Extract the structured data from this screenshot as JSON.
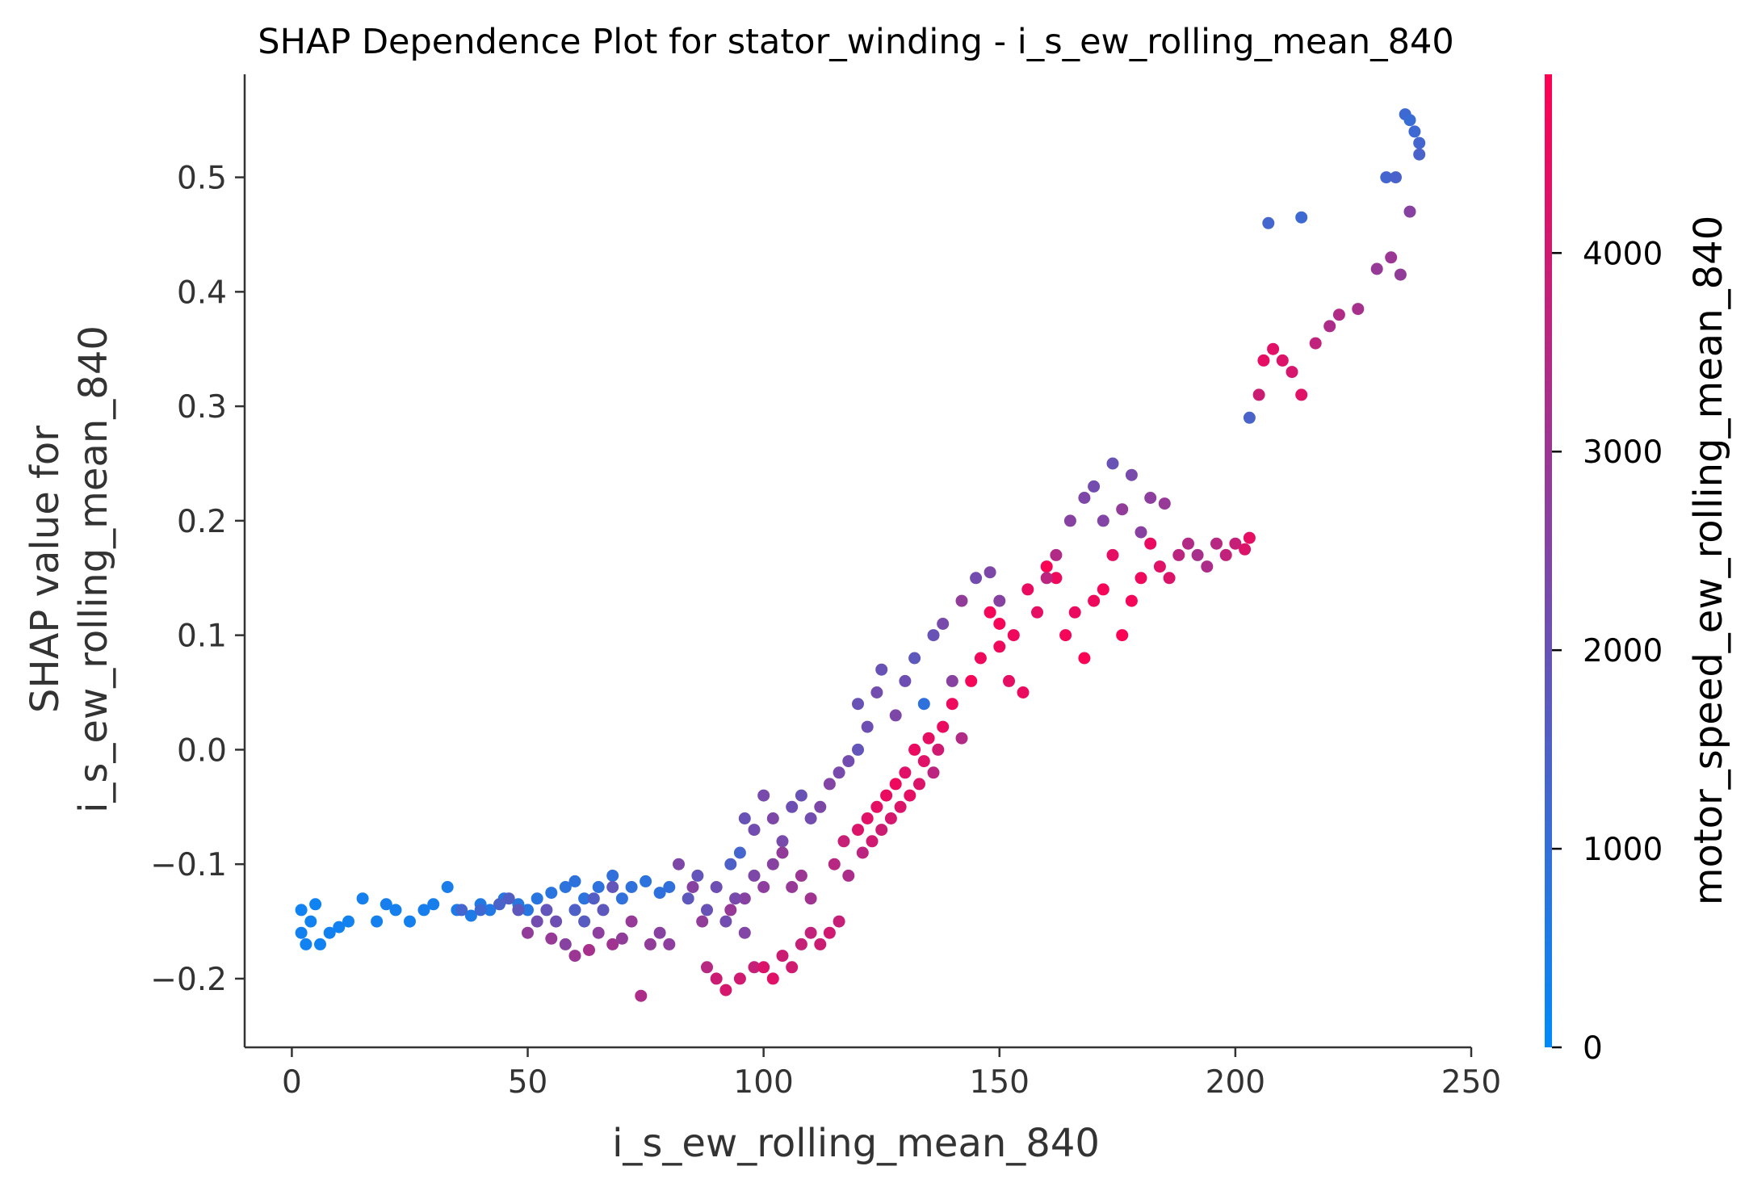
{
  "chart_data": {
    "type": "scatter",
    "title": "SHAP Dependence Plot for stator_winding - i_s_ew_rolling_mean_840",
    "xlabel": "i_s_ew_rolling_mean_840",
    "ylabel": [
      "SHAP value for",
      "i_s_ew_rolling_mean_840"
    ],
    "xlim": [
      -10,
      250
    ],
    "ylim": [
      -0.26,
      0.59
    ],
    "xticks": [
      0,
      50,
      100,
      150,
      200,
      250
    ],
    "yticks": [
      -0.2,
      -0.1,
      0.0,
      0.1,
      0.2,
      0.3,
      0.4,
      0.5
    ],
    "xtick_labels": [
      "0",
      "50",
      "100",
      "150",
      "200",
      "250"
    ],
    "ytick_labels": [
      "−0.2",
      "−0.1",
      "0.0",
      "0.1",
      "0.2",
      "0.3",
      "0.4",
      "0.5"
    ],
    "colorbar": {
      "label": "motor_speed_ew_rolling_mean_840",
      "range": [
        0,
        4900
      ],
      "ticks": [
        0,
        1000,
        2000,
        3000,
        4000
      ],
      "tick_labels": [
        "0",
        "1000",
        "2000",
        "3000",
        "4000"
      ],
      "colors": [
        "#008bfb",
        "#ff0052"
      ]
    },
    "points": [
      [
        2,
        -0.14,
        300
      ],
      [
        2,
        -0.16,
        350
      ],
      [
        3,
        -0.17,
        300
      ],
      [
        4,
        -0.15,
        320
      ],
      [
        5,
        -0.135,
        280
      ],
      [
        6,
        -0.17,
        300
      ],
      [
        8,
        -0.16,
        350
      ],
      [
        10,
        -0.155,
        320
      ],
      [
        12,
        -0.15,
        330
      ],
      [
        15,
        -0.13,
        400
      ],
      [
        18,
        -0.15,
        380
      ],
      [
        20,
        -0.135,
        420
      ],
      [
        22,
        -0.14,
        400
      ],
      [
        25,
        -0.15,
        380
      ],
      [
        28,
        -0.14,
        420
      ],
      [
        30,
        -0.135,
        450
      ],
      [
        33,
        -0.12,
        500
      ],
      [
        35,
        -0.14,
        520
      ],
      [
        38,
        -0.145,
        550
      ],
      [
        40,
        -0.135,
        600
      ],
      [
        42,
        -0.14,
        650
      ],
      [
        45,
        -0.13,
        700
      ],
      [
        48,
        -0.135,
        720
      ],
      [
        50,
        -0.14,
        750
      ],
      [
        52,
        -0.13,
        780
      ],
      [
        55,
        -0.125,
        800
      ],
      [
        58,
        -0.12,
        850
      ],
      [
        60,
        -0.115,
        900
      ],
      [
        62,
        -0.13,
        850
      ],
      [
        65,
        -0.12,
        880
      ],
      [
        68,
        -0.11,
        950
      ],
      [
        70,
        -0.13,
        920
      ],
      [
        72,
        -0.12,
        900
      ],
      [
        75,
        -0.115,
        850
      ],
      [
        78,
        -0.125,
        900
      ],
      [
        80,
        -0.12,
        950
      ],
      [
        50,
        -0.16,
        2800
      ],
      [
        55,
        -0.165,
        2900
      ],
      [
        58,
        -0.17,
        2600
      ],
      [
        60,
        -0.18,
        3000
      ],
      [
        63,
        -0.175,
        3200
      ],
      [
        65,
        -0.16,
        2700
      ],
      [
        68,
        -0.17,
        3100
      ],
      [
        70,
        -0.165,
        2800
      ],
      [
        72,
        -0.15,
        2900
      ],
      [
        74,
        -0.215,
        3300
      ],
      [
        76,
        -0.17,
        2800
      ],
      [
        78,
        -0.16,
        2600
      ],
      [
        80,
        -0.17,
        2700
      ],
      [
        82,
        -0.1,
        2400
      ],
      [
        85,
        -0.12,
        2600
      ],
      [
        87,
        -0.15,
        2800
      ],
      [
        88,
        -0.19,
        3500
      ],
      [
        90,
        -0.2,
        3900
      ],
      [
        92,
        -0.21,
        4100
      ],
      [
        93,
        -0.14,
        2900
      ],
      [
        95,
        -0.2,
        4000
      ],
      [
        96,
        -0.13,
        2600
      ],
      [
        98,
        -0.19,
        3800
      ],
      [
        100,
        -0.19,
        4200
      ],
      [
        102,
        -0.2,
        4300
      ],
      [
        104,
        -0.18,
        3900
      ],
      [
        106,
        -0.19,
        4000
      ],
      [
        108,
        -0.17,
        3800
      ],
      [
        110,
        -0.16,
        3700
      ],
      [
        112,
        -0.17,
        3900
      ],
      [
        114,
        -0.16,
        4000
      ],
      [
        116,
        -0.15,
        3800
      ],
      [
        93,
        -0.1,
        1500
      ],
      [
        95,
        -0.09,
        1300
      ],
      [
        96,
        -0.06,
        2000
      ],
      [
        98,
        -0.07,
        2200
      ],
      [
        100,
        -0.04,
        2300
      ],
      [
        102,
        -0.06,
        2400
      ],
      [
        104,
        -0.08,
        2300
      ],
      [
        106,
        -0.05,
        2100
      ],
      [
        108,
        -0.04,
        2000
      ],
      [
        110,
        -0.06,
        2200
      ],
      [
        112,
        -0.05,
        2400
      ],
      [
        114,
        -0.03,
        2500
      ],
      [
        116,
        -0.02,
        2300
      ],
      [
        118,
        -0.01,
        2200
      ],
      [
        120,
        0.0,
        1900
      ],
      [
        120,
        0.04,
        2000
      ],
      [
        122,
        0.02,
        2100
      ],
      [
        124,
        0.05,
        2200
      ],
      [
        125,
        0.07,
        2000
      ],
      [
        128,
        0.03,
        2400
      ],
      [
        130,
        0.06,
        2100
      ],
      [
        132,
        0.08,
        1800
      ],
      [
        134,
        0.04,
        900
      ],
      [
        136,
        0.1,
        2000
      ],
      [
        138,
        0.11,
        2300
      ],
      [
        140,
        0.06,
        2600
      ],
      [
        142,
        0.13,
        2800
      ],
      [
        145,
        0.15,
        2200
      ],
      [
        148,
        0.155,
        2400
      ],
      [
        150,
        0.13,
        2600
      ],
      [
        115,
        -0.1,
        3500
      ],
      [
        117,
        -0.08,
        3800
      ],
      [
        118,
        -0.11,
        3300
      ],
      [
        120,
        -0.07,
        4200
      ],
      [
        121,
        -0.09,
        3600
      ],
      [
        122,
        -0.06,
        4300
      ],
      [
        123,
        -0.08,
        4000
      ],
      [
        124,
        -0.05,
        4400
      ],
      [
        125,
        -0.07,
        3900
      ],
      [
        126,
        -0.04,
        4500
      ],
      [
        127,
        -0.06,
        4100
      ],
      [
        128,
        -0.03,
        4600
      ],
      [
        129,
        -0.05,
        4200
      ],
      [
        130,
        -0.02,
        4300
      ],
      [
        131,
        -0.04,
        4400
      ],
      [
        132,
        0.0,
        4500
      ],
      [
        133,
        -0.03,
        4200
      ],
      [
        134,
        -0.01,
        4300
      ],
      [
        135,
        0.01,
        4400
      ],
      [
        136,
        -0.02,
        3600
      ],
      [
        137,
        0.0,
        4000
      ],
      [
        138,
        0.02,
        4500
      ],
      [
        140,
        0.04,
        4600
      ],
      [
        142,
        0.01,
        3400
      ],
      [
        144,
        0.06,
        4700
      ],
      [
        146,
        0.08,
        4600
      ],
      [
        148,
        0.12,
        4700
      ],
      [
        150,
        0.09,
        4600
      ],
      [
        152,
        0.06,
        4400
      ],
      [
        155,
        0.05,
        4500
      ],
      [
        150,
        0.11,
        4700
      ],
      [
        153,
        0.1,
        4600
      ],
      [
        156,
        0.14,
        4500
      ],
      [
        158,
        0.12,
        4400
      ],
      [
        160,
        0.16,
        4800
      ],
      [
        162,
        0.15,
        4600
      ],
      [
        164,
        0.1,
        4700
      ],
      [
        166,
        0.12,
        4500
      ],
      [
        168,
        0.08,
        4800
      ],
      [
        170,
        0.13,
        4600
      ],
      [
        172,
        0.14,
        4700
      ],
      [
        174,
        0.17,
        4400
      ],
      [
        176,
        0.1,
        4800
      ],
      [
        178,
        0.13,
        4700
      ],
      [
        180,
        0.15,
        4600
      ],
      [
        182,
        0.18,
        4500
      ],
      [
        184,
        0.16,
        4300
      ],
      [
        186,
        0.15,
        4200
      ],
      [
        188,
        0.17,
        3600
      ],
      [
        190,
        0.18,
        3400
      ],
      [
        192,
        0.17,
        3200
      ],
      [
        194,
        0.16,
        3300
      ],
      [
        196,
        0.18,
        3500
      ],
      [
        198,
        0.17,
        3700
      ],
      [
        200,
        0.18,
        3800
      ],
      [
        202,
        0.175,
        4200
      ],
      [
        203,
        0.185,
        4400
      ],
      [
        160,
        0.15,
        3600
      ],
      [
        162,
        0.17,
        3400
      ],
      [
        165,
        0.2,
        2600
      ],
      [
        168,
        0.22,
        2400
      ],
      [
        170,
        0.23,
        2200
      ],
      [
        172,
        0.2,
        2500
      ],
      [
        174,
        0.25,
        2000
      ],
      [
        176,
        0.21,
        2800
      ],
      [
        178,
        0.24,
        2300
      ],
      [
        180,
        0.19,
        2600
      ],
      [
        182,
        0.22,
        2700
      ],
      [
        185,
        0.215,
        2900
      ],
      [
        203,
        0.29,
        1400
      ],
      [
        205,
        0.31,
        3900
      ],
      [
        206,
        0.34,
        4400
      ],
      [
        208,
        0.35,
        4300
      ],
      [
        210,
        0.34,
        4200
      ],
      [
        212,
        0.33,
        4100
      ],
      [
        214,
        0.31,
        4300
      ],
      [
        217,
        0.355,
        3700
      ],
      [
        220,
        0.37,
        3300
      ],
      [
        222,
        0.38,
        3400
      ],
      [
        226,
        0.385,
        3200
      ],
      [
        230,
        0.42,
        2900
      ],
      [
        233,
        0.43,
        3000
      ],
      [
        235,
        0.415,
        2800
      ],
      [
        237,
        0.47,
        2600
      ],
      [
        207,
        0.46,
        1300
      ],
      [
        214,
        0.465,
        1200
      ],
      [
        232,
        0.5,
        1300
      ],
      [
        234,
        0.5,
        1400
      ],
      [
        236,
        0.555,
        1200
      ],
      [
        237,
        0.55,
        1100
      ],
      [
        238,
        0.54,
        1200
      ],
      [
        239,
        0.53,
        1300
      ],
      [
        239,
        0.52,
        1400
      ],
      [
        84,
        -0.13,
        1800
      ],
      [
        86,
        -0.11,
        1900
      ],
      [
        88,
        -0.14,
        2000
      ],
      [
        90,
        -0.12,
        2100
      ],
      [
        92,
        -0.15,
        2200
      ],
      [
        94,
        -0.13,
        2300
      ],
      [
        96,
        -0.16,
        2500
      ],
      [
        98,
        -0.11,
        2400
      ],
      [
        100,
        -0.12,
        2700
      ],
      [
        102,
        -0.1,
        2600
      ],
      [
        104,
        -0.09,
        2800
      ],
      [
        106,
        -0.12,
        2900
      ],
      [
        108,
        -0.11,
        3000
      ],
      [
        110,
        -0.13,
        3100
      ],
      [
        60,
        -0.14,
        1500
      ],
      [
        62,
        -0.15,
        1700
      ],
      [
        64,
        -0.13,
        1600
      ],
      [
        66,
        -0.14,
        1800
      ],
      [
        68,
        -0.12,
        1900
      ],
      [
        56,
        -0.15,
        2100
      ],
      [
        54,
        -0.14,
        1900
      ],
      [
        52,
        -0.15,
        2200
      ],
      [
        48,
        -0.14,
        1800
      ],
      [
        46,
        -0.13,
        1600
      ],
      [
        44,
        -0.135,
        1400
      ],
      [
        40,
        -0.14,
        1200
      ],
      [
        36,
        -0.14,
        1300
      ]
    ]
  }
}
